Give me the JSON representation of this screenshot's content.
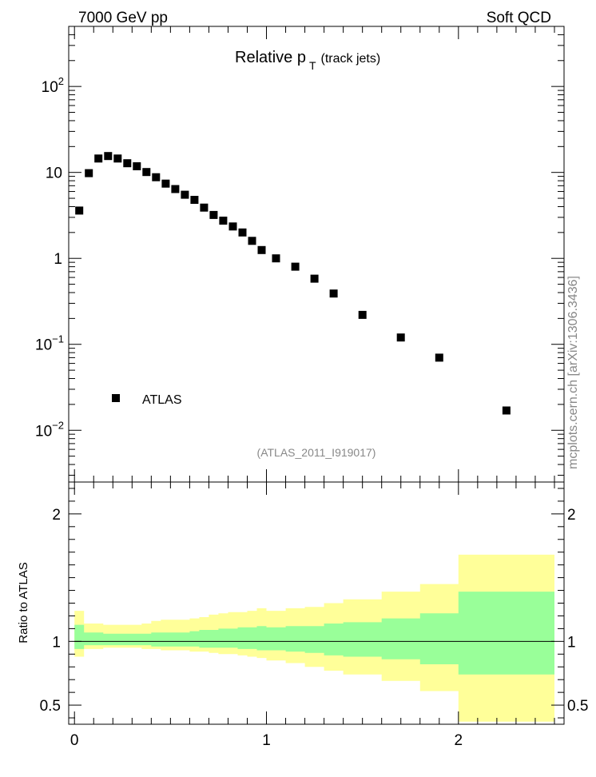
{
  "header": {
    "left": "7000 GeV pp",
    "right": "Soft QCD"
  },
  "side_label": "mcplots.cern.ch [arXiv:1306.3436]",
  "chart_data": [
    {
      "panel": "main",
      "type": "scatter",
      "title": "Relative p",
      "title_sub": "T",
      "title_suffix": "(track jets)",
      "yscale": "log",
      "xlim": [
        -0.03,
        2.55
      ],
      "ylim": [
        0.0025,
        500
      ],
      "yticks": [
        {
          "value": 100,
          "base": "10",
          "exp": "2"
        },
        {
          "value": 10,
          "base": "10",
          "exp": ""
        },
        {
          "value": 1,
          "base": "1",
          "exp": ""
        },
        {
          "value": 0.1,
          "base": "10",
          "exp": "−1"
        },
        {
          "value": 0.01,
          "base": "10",
          "exp": "−2"
        }
      ],
      "legend": {
        "label": "ATLAS",
        "position": "lower-left"
      },
      "annotation": "(ATLAS_2011_I919017)",
      "series": [
        {
          "name": "ATLAS",
          "x": [
            0.025,
            0.075,
            0.125,
            0.175,
            0.225,
            0.275,
            0.325,
            0.375,
            0.425,
            0.475,
            0.525,
            0.575,
            0.625,
            0.675,
            0.725,
            0.775,
            0.825,
            0.875,
            0.925,
            0.975,
            1.05,
            1.15,
            1.25,
            1.35,
            1.5,
            1.7,
            1.9,
            2.25
          ],
          "y": [
            3.6,
            9.8,
            14.5,
            15.5,
            14.5,
            12.8,
            11.8,
            10.1,
            8.8,
            7.4,
            6.4,
            5.5,
            4.8,
            3.9,
            3.2,
            2.75,
            2.35,
            2.0,
            1.6,
            1.25,
            1.0,
            0.8,
            0.58,
            0.39,
            0.22,
            0.12,
            0.07,
            0.017
          ]
        }
      ]
    },
    {
      "panel": "ratio",
      "type": "area",
      "ylabel": "Ratio to ATLAS",
      "xlim": [
        -0.03,
        2.55
      ],
      "ylim": [
        0.35,
        2.25
      ],
      "xticks": [
        0,
        1,
        2
      ],
      "yticks": [
        0.5,
        1,
        2
      ],
      "reference_line": 1,
      "bin_edges": [
        0,
        0.05,
        0.1,
        0.15,
        0.2,
        0.25,
        0.3,
        0.35,
        0.4,
        0.45,
        0.5,
        0.55,
        0.6,
        0.65,
        0.7,
        0.75,
        0.8,
        0.85,
        0.9,
        0.95,
        1.0,
        1.1,
        1.2,
        1.3,
        1.4,
        1.6,
        1.8,
        2.0,
        2.5
      ],
      "series": [
        {
          "color": "#ffff99",
          "upper": [
            1.24,
            1.14,
            1.14,
            1.13,
            1.13,
            1.13,
            1.13,
            1.14,
            1.16,
            1.17,
            1.17,
            1.17,
            1.18,
            1.19,
            1.21,
            1.22,
            1.23,
            1.23,
            1.24,
            1.26,
            1.24,
            1.26,
            1.27,
            1.3,
            1.33,
            1.39,
            1.45,
            1.68
          ],
          "lower": [
            0.88,
            0.94,
            0.94,
            0.95,
            0.95,
            0.95,
            0.95,
            0.94,
            0.94,
            0.93,
            0.93,
            0.93,
            0.92,
            0.92,
            0.91,
            0.9,
            0.9,
            0.89,
            0.88,
            0.87,
            0.85,
            0.83,
            0.8,
            0.77,
            0.74,
            0.69,
            0.61,
            0.37
          ]
        },
        {
          "color": "#99ff99",
          "upper": [
            1.13,
            1.07,
            1.07,
            1.06,
            1.06,
            1.06,
            1.06,
            1.06,
            1.07,
            1.07,
            1.07,
            1.07,
            1.08,
            1.09,
            1.09,
            1.1,
            1.1,
            1.11,
            1.11,
            1.12,
            1.11,
            1.12,
            1.12,
            1.14,
            1.15,
            1.18,
            1.22,
            1.39
          ],
          "lower": [
            0.94,
            0.97,
            0.97,
            0.97,
            0.97,
            0.97,
            0.97,
            0.97,
            0.96,
            0.96,
            0.96,
            0.96,
            0.96,
            0.95,
            0.95,
            0.95,
            0.95,
            0.94,
            0.94,
            0.93,
            0.93,
            0.92,
            0.91,
            0.89,
            0.88,
            0.86,
            0.82,
            0.74
          ]
        }
      ]
    }
  ]
}
